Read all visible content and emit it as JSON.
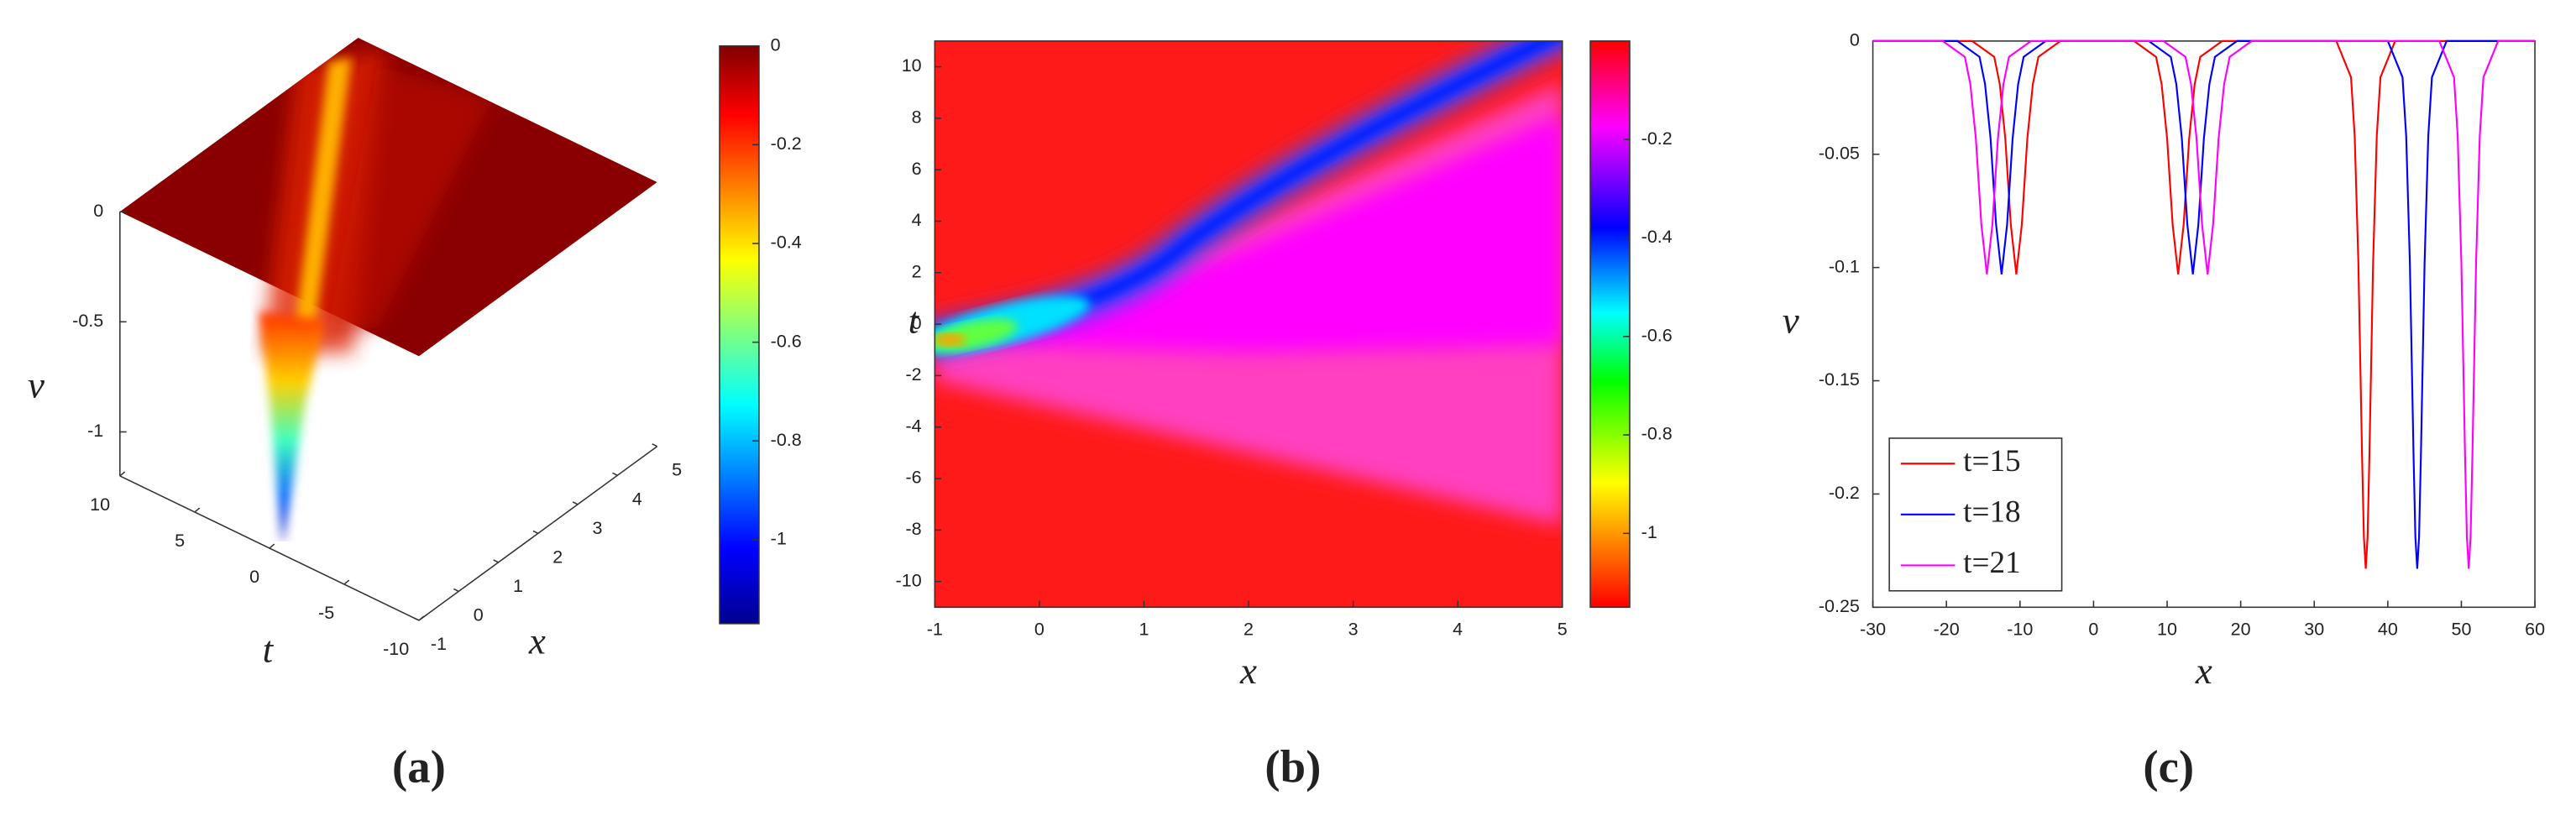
{
  "chart_data": [
    {
      "type": "surface",
      "caption": "(a)",
      "xlabel": "x",
      "ylabel": "t",
      "zlabel": "v",
      "xlim": [
        -1,
        5
      ],
      "ylim": [
        -10,
        10
      ],
      "zlim": [
        -1.2,
        0
      ],
      "xticks": [
        -1,
        0,
        1,
        2,
        3,
        4,
        5
      ],
      "yticks": [
        10,
        5,
        0,
        -5,
        -10
      ],
      "zticks": [
        0,
        -0.5,
        -1
      ],
      "colorbar": {
        "colormap": "jet",
        "clim": [
          -1.17,
          0
        ],
        "ticks": [
          0,
          -0.2,
          -0.4,
          -0.6,
          -0.8,
          -1
        ]
      }
    },
    {
      "type": "contour",
      "caption": "(b)",
      "xlabel": "x",
      "ylabel": "t",
      "xlim": [
        -1,
        5
      ],
      "ylim": [
        -11,
        11
      ],
      "xticks": [
        -1,
        0,
        1,
        2,
        3,
        4,
        5
      ],
      "yticks": [
        10,
        8,
        6,
        4,
        2,
        0,
        -2,
        -4,
        -6,
        -8,
        -10
      ],
      "colorbar": {
        "colormap": "hsv",
        "clim": [
          -1.15,
          0
        ],
        "ticks": [
          -0.2,
          -0.4,
          -0.6,
          -0.8,
          -1
        ]
      }
    },
    {
      "type": "line",
      "caption": "(c)",
      "xlabel": "x",
      "ylabel": "v",
      "xlim": [
        -30,
        60
      ],
      "ylim": [
        -0.25,
        0
      ],
      "xticks": [
        -30,
        -20,
        -10,
        0,
        10,
        20,
        30,
        40,
        50,
        60
      ],
      "yticks": [
        0,
        -0.05,
        -0.1,
        -0.15,
        -0.2,
        -0.25
      ],
      "legend": "lower left",
      "series": [
        {
          "name": "t=15",
          "color": "#ff0000",
          "x": [
            -30,
            -16.5,
            -13.5,
            -12.75,
            -12,
            -11.25,
            -10.5,
            -9.75,
            -9,
            -8.25,
            -7.5,
            -4.5,
            5.5,
            8.5,
            9.25,
            10,
            10.75,
            11.5,
            12.25,
            13,
            13.75,
            14.5,
            17.5,
            33,
            35,
            35.5,
            36,
            36.5,
            36.75,
            37,
            37.25,
            37.5,
            38,
            38.5,
            39,
            41,
            60
          ],
          "values": [
            0,
            0,
            -0.007,
            -0.019,
            -0.043,
            -0.081,
            -0.103,
            -0.081,
            -0.043,
            -0.019,
            -0.007,
            0,
            0,
            -0.007,
            -0.019,
            -0.043,
            -0.081,
            -0.103,
            -0.081,
            -0.043,
            -0.019,
            -0.007,
            0,
            0,
            -0.016,
            -0.042,
            -0.098,
            -0.183,
            -0.219,
            -0.233,
            -0.219,
            -0.183,
            -0.098,
            -0.042,
            -0.016,
            0,
            0
          ]
        },
        {
          "name": "t=18",
          "color": "#0000ff",
          "x": [
            -30,
            -18.5,
            -15.5,
            -14.75,
            -14,
            -13.25,
            -12.5,
            -11.75,
            -11,
            -10.25,
            -9.5,
            -6.5,
            7.5,
            10.5,
            11.25,
            12,
            12.75,
            13.5,
            14.25,
            15,
            15.75,
            16.5,
            19.5,
            40,
            42,
            42.5,
            43,
            43.5,
            43.75,
            44,
            44.25,
            44.5,
            45,
            45.5,
            46,
            48,
            60
          ],
          "values": [
            0,
            0,
            -0.007,
            -0.019,
            -0.043,
            -0.081,
            -0.103,
            -0.081,
            -0.043,
            -0.019,
            -0.007,
            0,
            0,
            -0.007,
            -0.019,
            -0.043,
            -0.081,
            -0.103,
            -0.081,
            -0.043,
            -0.019,
            -0.007,
            0,
            0,
            -0.016,
            -0.042,
            -0.098,
            -0.183,
            -0.219,
            -0.233,
            -0.219,
            -0.183,
            -0.098,
            -0.042,
            -0.016,
            0,
            0
          ]
        },
        {
          "name": "t=21",
          "color": "#ff00ff",
          "x": [
            -30,
            -20.5,
            -17.5,
            -16.75,
            -16,
            -15.25,
            -14.5,
            -13.75,
            -13,
            -12.25,
            -11.5,
            -8.5,
            9.5,
            12.5,
            13.25,
            14,
            14.75,
            15.5,
            16.25,
            17,
            17.75,
            18.5,
            21.5,
            47,
            49,
            49.5,
            50,
            50.5,
            50.75,
            51,
            51.25,
            51.5,
            52,
            52.5,
            53,
            55,
            60
          ],
          "values": [
            0,
            0,
            -0.007,
            -0.019,
            -0.043,
            -0.081,
            -0.103,
            -0.081,
            -0.043,
            -0.019,
            -0.007,
            0,
            0,
            -0.007,
            -0.019,
            -0.043,
            -0.081,
            -0.103,
            -0.081,
            -0.043,
            -0.019,
            -0.007,
            0,
            0,
            -0.016,
            -0.042,
            -0.098,
            -0.183,
            -0.219,
            -0.233,
            -0.219,
            -0.183,
            -0.098,
            -0.042,
            -0.016,
            0,
            0
          ]
        }
      ]
    }
  ]
}
